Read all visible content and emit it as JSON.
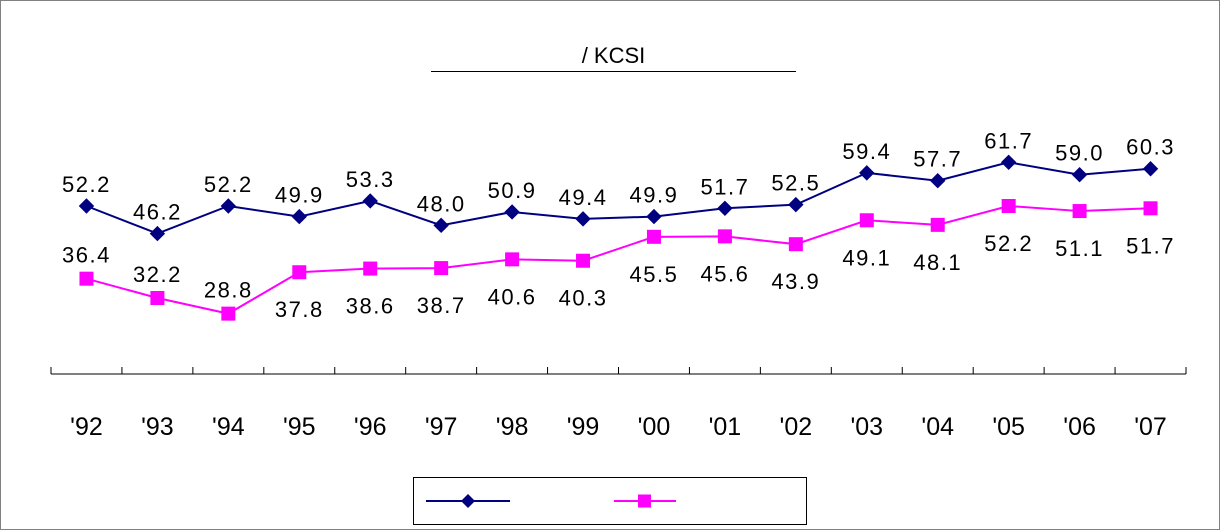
{
  "chart_data": {
    "type": "line",
    "title": "/            KCSI",
    "categories": [
      "'92",
      "'93",
      "'94",
      "'95",
      "'96",
      "'97",
      "'98",
      "'99",
      "'00",
      "'01",
      "'02",
      "'03",
      "'04",
      "'05",
      "'06",
      "'07"
    ],
    "series": [
      {
        "color": "#000080",
        "marker": "diamond",
        "values": [
          52.2,
          46.2,
          52.2,
          49.9,
          53.3,
          48.0,
          50.9,
          49.4,
          49.9,
          51.7,
          52.5,
          59.4,
          57.7,
          61.7,
          59.0,
          60.3
        ],
        "labels": [
          "52.2",
          "46.2",
          "52.2",
          "49.9",
          "53.3",
          "48.0",
          "50.9",
          "49.4",
          "49.9",
          "51.7",
          "52.5",
          "59.4",
          "57.7",
          "61.7",
          "59.0",
          "60.3"
        ]
      },
      {
        "color": "#ff00ff",
        "marker": "square",
        "values": [
          36.4,
          32.2,
          28.8,
          37.8,
          38.6,
          38.7,
          40.6,
          40.3,
          45.5,
          45.6,
          43.9,
          49.1,
          48.1,
          52.2,
          51.1,
          51.7
        ],
        "labels": [
          "36.4",
          "32.2",
          "28.8",
          "37.8",
          "38.6",
          "38.7",
          "40.6",
          "40.3",
          "45.5",
          "45.6",
          "43.9",
          "49.1",
          "48.1",
          "52.2",
          "51.1",
          "51.7"
        ]
      }
    ],
    "grid": false,
    "legend_position": "bottom"
  }
}
